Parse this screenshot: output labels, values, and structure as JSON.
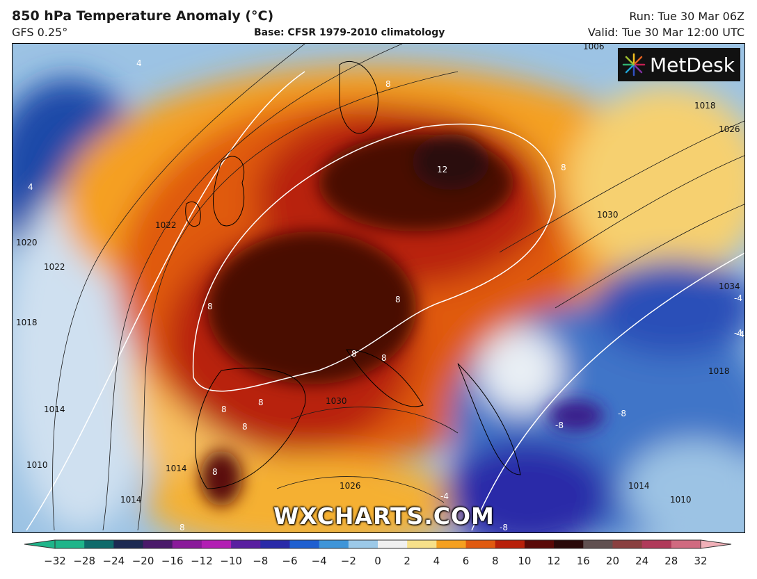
{
  "header": {
    "title": "850 hPa Temperature Anomaly (°C)",
    "model": "GFS 0.25°",
    "base": "Base: CFSR 1979-2010 climatology",
    "run": "Run: Tue 30 Mar 06Z",
    "valid": "Valid: Tue 30 Mar 12:00 UTC"
  },
  "logo": {
    "text": "MetDesk",
    "icon": "metdesk-burst-icon"
  },
  "watermark": "WXCHARTS.COM",
  "colorbar": {
    "ticks": [
      "−32",
      "−28",
      "−24",
      "−20",
      "−16",
      "−12",
      "−10",
      "−8",
      "−6",
      "−4",
      "−2",
      "0",
      "2",
      "4",
      "6",
      "8",
      "10",
      "12",
      "16",
      "20",
      "24",
      "28",
      "32"
    ],
    "colors": [
      "#1fb58a",
      "#0f6b6b",
      "#1c2a52",
      "#4a1a6a",
      "#8a1a9a",
      "#b21fb3",
      "#5a1fa0",
      "#2a2aa8",
      "#1f5fd0",
      "#3f95d8",
      "#9cc9e8",
      "#f0f0f0",
      "#f7e08a",
      "#f5a020",
      "#e05a10",
      "#b8200a",
      "#5a0a08",
      "#2a0a0a",
      "#605050",
      "#8a4040",
      "#b03a5a",
      "#d06a80",
      "#f0b0b8"
    ]
  },
  "map": {
    "isobars": [
      "1006",
      "1018",
      "1026",
      "1030",
      "1034",
      "1022",
      "1020",
      "1022",
      "1018",
      "1014",
      "1010",
      "1014",
      "1014",
      "1026",
      "1030",
      "1014",
      "1010",
      "1018"
    ],
    "anomaly_labels": [
      "4",
      "4",
      "8",
      "12",
      "8",
      "8",
      "8",
      "8",
      "8",
      "8",
      "8",
      "8",
      "8",
      "8",
      "-4",
      "-4",
      "-8",
      "-8",
      "-4",
      "-8",
      "-4"
    ]
  }
}
